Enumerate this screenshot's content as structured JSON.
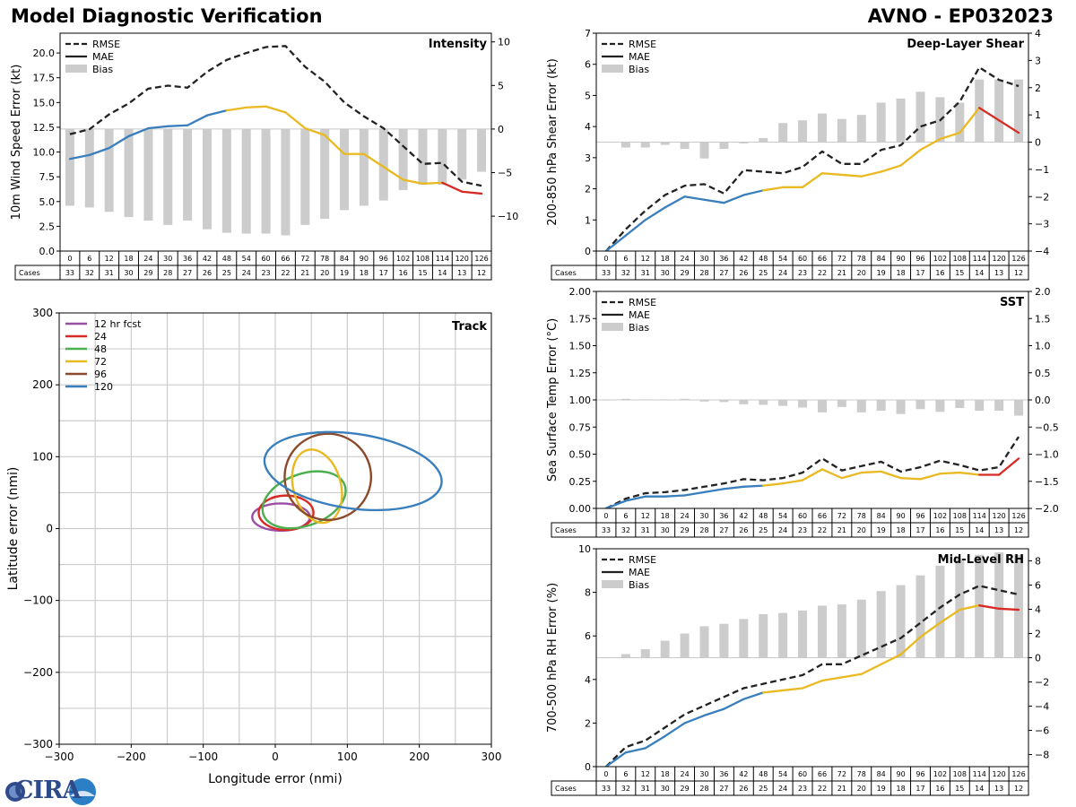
{
  "header": {
    "left_title": "Model Diagnostic Verification",
    "right_title": "AVNO - EP032023"
  },
  "logo": {
    "text": "CIRA"
  },
  "colors": {
    "rmse": "#222222",
    "mae_early": "#3a7fbd",
    "mae_mid": "#e9b921",
    "mae_late": "#d82a25",
    "bias": "#cccccc",
    "grid": "#cccccc",
    "track_12": "#9b4ea6",
    "track_24": "#d82a25",
    "track_48": "#4bae4f",
    "track_72": "#e9b921",
    "track_96": "#8b4a2b",
    "track_120": "#3a7fbd"
  },
  "table": {
    "cases_label": "Cases",
    "hours": [
      "0",
      "6",
      "12",
      "18",
      "24",
      "30",
      "36",
      "42",
      "48",
      "54",
      "60",
      "66",
      "72",
      "78",
      "84",
      "90",
      "96",
      "102",
      "108",
      "114",
      "120",
      "126"
    ],
    "cases": [
      "33",
      "32",
      "31",
      "30",
      "29",
      "28",
      "27",
      "26",
      "25",
      "24",
      "23",
      "22",
      "21",
      "20",
      "19",
      "18",
      "17",
      "16",
      "15",
      "14",
      "13",
      "12"
    ]
  },
  "legend": {
    "rmse": "RMSE",
    "mae": "MAE",
    "bias": "Bias"
  },
  "chart_data": [
    {
      "id": "intensity",
      "type": "line",
      "title": "Intensity",
      "ylabel": "10m Wind Speed Error (kt)",
      "ylim": [
        0,
        22
      ],
      "yticks": [
        "0.0",
        "2.5",
        "5.0",
        "7.5",
        "10.0",
        "12.5",
        "15.0",
        "17.5",
        "20.0"
      ],
      "yticks_v": [
        0,
        2.5,
        5,
        7.5,
        10,
        12.5,
        15,
        17.5,
        20
      ],
      "y2lim": [
        -14,
        11
      ],
      "y2ticks": [
        "−10",
        "−5",
        "0",
        "5",
        "10"
      ],
      "y2ticks_v": [
        -10,
        -5,
        0,
        5,
        10
      ],
      "rmse": [
        11.8,
        12.3,
        13.8,
        14.9,
        16.4,
        16.7,
        16.5,
        18.1,
        19.3,
        20.0,
        20.6,
        20.7,
        18.6,
        17.1,
        15.0,
        13.6,
        12.4,
        10.6,
        8.8,
        8.9,
        7.0,
        6.6
      ],
      "mae": [
        9.3,
        9.7,
        10.4,
        11.6,
        12.4,
        12.6,
        12.7,
        13.7,
        14.2,
        14.5,
        14.6,
        14.0,
        12.4,
        11.7,
        9.8,
        9.8,
        8.5,
        7.2,
        6.8,
        6.9,
        6.0,
        5.8
      ],
      "bias": [
        -8.8,
        -9.0,
        -9.5,
        -10.1,
        -10.5,
        -11.0,
        -10.5,
        -11.5,
        -11.9,
        -12.0,
        -12.0,
        -12.2,
        -11.0,
        -10.3,
        -9.3,
        -8.8,
        -8.2,
        -7.0,
        -6.4,
        -6.4,
        -5.8,
        -4.9
      ]
    },
    {
      "id": "shear",
      "type": "line",
      "title": "Deep-Layer Shear",
      "ylabel": "200-850 hPa Shear Error (kt)",
      "ylim": [
        0,
        7
      ],
      "yticks": [
        "0",
        "1",
        "2",
        "3",
        "4",
        "5",
        "6",
        "7"
      ],
      "yticks_v": [
        0,
        1,
        2,
        3,
        4,
        5,
        6,
        7
      ],
      "y2lim": [
        -4,
        4
      ],
      "y2ticks": [
        "−4",
        "−3",
        "−2",
        "−1",
        "0",
        "1",
        "2",
        "3",
        "4"
      ],
      "y2ticks_v": [
        -4,
        -3,
        -2,
        -1,
        0,
        1,
        2,
        3,
        4
      ],
      "rmse": [
        0.0,
        0.7,
        1.3,
        1.8,
        2.1,
        2.15,
        1.85,
        2.6,
        2.55,
        2.5,
        2.7,
        3.2,
        2.8,
        2.8,
        3.25,
        3.4,
        4.0,
        4.2,
        4.8,
        5.9,
        5.5,
        5.3
      ],
      "mae": [
        0.0,
        0.5,
        1.0,
        1.4,
        1.75,
        1.65,
        1.55,
        1.8,
        1.95,
        2.05,
        2.05,
        2.5,
        2.45,
        2.4,
        2.55,
        2.75,
        3.25,
        3.6,
        3.8,
        4.6,
        4.2,
        3.8
      ],
      "bias": [
        0.0,
        -0.2,
        -0.2,
        -0.1,
        -0.25,
        -0.6,
        -0.25,
        -0.05,
        0.15,
        0.7,
        0.8,
        1.05,
        0.85,
        1.0,
        1.45,
        1.6,
        1.85,
        1.65,
        1.45,
        2.3,
        2.3,
        2.3
      ]
    },
    {
      "id": "sst",
      "type": "line",
      "title": "SST",
      "ylabel": "Sea Surface Temp Error (°C)",
      "ylim": [
        0,
        2
      ],
      "yticks": [
        "0.00",
        "0.25",
        "0.50",
        "0.75",
        "1.00",
        "1.25",
        "1.50",
        "1.75",
        "2.00"
      ],
      "yticks_v": [
        0,
        0.25,
        0.5,
        0.75,
        1,
        1.25,
        1.5,
        1.75,
        2
      ],
      "y2lim": [
        -2,
        2
      ],
      "y2ticks": [
        "−2.0",
        "−1.5",
        "−1.0",
        "−0.5",
        "0.0",
        "0.5",
        "1.0",
        "1.5",
        "2.0"
      ],
      "y2ticks_v": [
        -2,
        -1.5,
        -1,
        -0.5,
        0,
        0.5,
        1,
        1.5,
        2
      ],
      "rmse": [
        0.0,
        0.09,
        0.14,
        0.15,
        0.17,
        0.2,
        0.23,
        0.27,
        0.26,
        0.28,
        0.33,
        0.46,
        0.35,
        0.39,
        0.43,
        0.34,
        0.38,
        0.44,
        0.4,
        0.35,
        0.38,
        0.66
      ],
      "mae": [
        0.0,
        0.07,
        0.11,
        0.11,
        0.12,
        0.15,
        0.18,
        0.2,
        0.21,
        0.23,
        0.26,
        0.36,
        0.28,
        0.33,
        0.34,
        0.28,
        0.27,
        0.32,
        0.33,
        0.31,
        0.31,
        0.46
      ],
      "bias": [
        0.0,
        0.02,
        0.01,
        0.01,
        0.02,
        -0.03,
        -0.04,
        -0.08,
        -0.09,
        -0.11,
        -0.14,
        -0.23,
        -0.13,
        -0.23,
        -0.2,
        -0.26,
        -0.17,
        -0.22,
        -0.15,
        -0.2,
        -0.2,
        -0.29
      ]
    },
    {
      "id": "rh",
      "type": "line",
      "title": "Mid-Level RH",
      "ylabel": "700-500 hPa RH Error (%)",
      "ylim": [
        0,
        10
      ],
      "yticks": [
        "0",
        "2",
        "4",
        "6",
        "8",
        "10"
      ],
      "yticks_v": [
        0,
        2,
        4,
        6,
        8,
        10
      ],
      "y2lim": [
        -9,
        9
      ],
      "y2ticks": [
        "−8",
        "−6",
        "−4",
        "−2",
        "0",
        "2",
        "4",
        "6",
        "8"
      ],
      "y2ticks_v": [
        -8,
        -6,
        -4,
        -2,
        0,
        2,
        4,
        6,
        8
      ],
      "rmse": [
        0.0,
        0.9,
        1.2,
        1.8,
        2.4,
        2.8,
        3.2,
        3.6,
        3.8,
        4.0,
        4.2,
        4.7,
        4.7,
        5.1,
        5.5,
        5.9,
        6.6,
        7.3,
        7.9,
        8.3,
        8.1,
        7.9
      ],
      "mae": [
        0.0,
        0.65,
        0.85,
        1.4,
        2.0,
        2.35,
        2.65,
        3.1,
        3.4,
        3.5,
        3.6,
        3.95,
        4.1,
        4.25,
        4.7,
        5.15,
        5.95,
        6.6,
        7.2,
        7.4,
        7.25,
        7.2
      ],
      "bias": [
        0.0,
        0.3,
        0.7,
        1.4,
        2.0,
        2.6,
        2.8,
        3.2,
        3.6,
        3.7,
        3.9,
        4.3,
        4.4,
        4.8,
        5.5,
        6.0,
        6.8,
        7.6,
        8.2,
        8.5,
        8.7,
        8.5
      ]
    },
    {
      "id": "track",
      "type": "scatter",
      "title": "Track",
      "xlabel": "Longitude error (nmi)",
      "ylabel": "Latitude error (nmi)",
      "xlim": [
        -300,
        300
      ],
      "ylim": [
        -300,
        300
      ],
      "xticks": [
        "−300",
        "−200",
        "−100",
        "0",
        "100",
        "200",
        "300"
      ],
      "xticks_v": [
        -300,
        -200,
        -100,
        0,
        100,
        200,
        300
      ],
      "yticks": [
        "−300",
        "−200",
        "−100",
        "0",
        "100",
        "200",
        "300"
      ],
      "yticks_v": [
        -300,
        -200,
        -100,
        0,
        100,
        200,
        300
      ],
      "ellipses": [
        {
          "label": "12 hr fcst",
          "color_key": "track_12",
          "cx": 8,
          "cy": 16,
          "rx": 40,
          "ry": 19,
          "rot": 0
        },
        {
          "label": "24",
          "color_key": "track_24",
          "cx": 15,
          "cy": 22,
          "rx": 38,
          "ry": 24,
          "rot": 0
        },
        {
          "label": "48",
          "color_key": "track_48",
          "cx": 40,
          "cy": 40,
          "rx": 60,
          "ry": 36,
          "rot": 20
        },
        {
          "label": "72",
          "color_key": "track_72",
          "cx": 58,
          "cy": 59,
          "rx": 33,
          "ry": 52,
          "rot": 15
        },
        {
          "label": "96",
          "color_key": "track_96",
          "cx": 73,
          "cy": 72,
          "rx": 60,
          "ry": 60,
          "rot": 0
        },
        {
          "label": "120",
          "color_key": "track_120",
          "cx": 108,
          "cy": 80,
          "rx": 124,
          "ry": 52,
          "rot": -8
        }
      ]
    }
  ]
}
